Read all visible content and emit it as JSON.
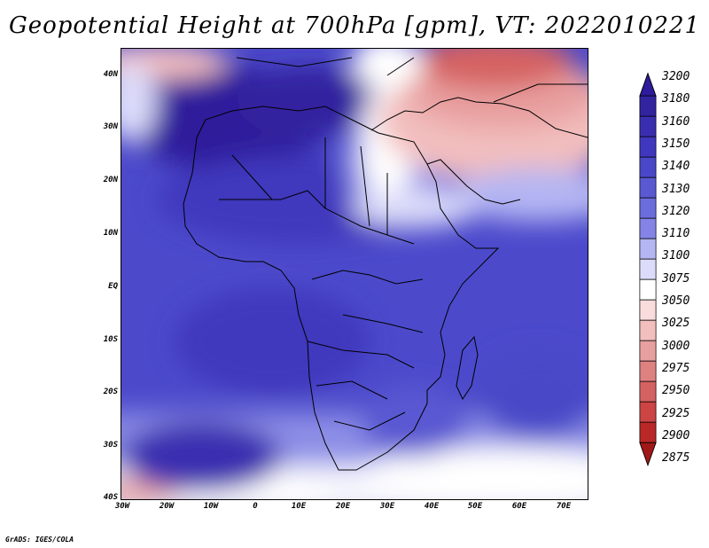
{
  "title": "Geopotential Height at 700hPa [gpm], VT: 2022010221",
  "footer": "GrADS: IGES/COLA",
  "axes": {
    "y_labels": [
      "40N",
      "30N",
      "20N",
      "10N",
      "EQ",
      "10S",
      "20S",
      "30S",
      "40S"
    ],
    "x_labels": [
      "30W",
      "20W",
      "10W",
      "0",
      "10E",
      "20E",
      "30E",
      "40E",
      "50E",
      "60E",
      "70E"
    ]
  },
  "colorbar": {
    "labels": [
      "3200",
      "3180",
      "3160",
      "3150",
      "3140",
      "3130",
      "3120",
      "3110",
      "3100",
      "3075",
      "3050",
      "3025",
      "3000",
      "2975",
      "2950",
      "2925",
      "2900",
      "2875"
    ],
    "colors": [
      "#2d1b9b",
      "#32239f",
      "#3a2eb0",
      "#3f37bd",
      "#4a48c8",
      "#5a59d2",
      "#6c6ddc",
      "#8384e6",
      "#b4b5f3",
      "#dcdcfa",
      "#ffffff",
      "#f9dcdc",
      "#f2bebe",
      "#e89f9f",
      "#de8181",
      "#d56262",
      "#cc4444",
      "#b92727",
      "#a21818"
    ]
  }
}
